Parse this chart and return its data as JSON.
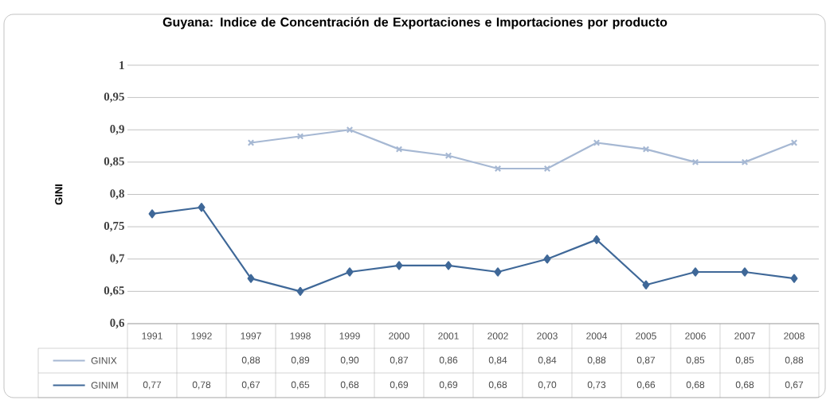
{
  "chart_data": {
    "type": "line",
    "title": "Guyana: Indice de Concentración de Exportaciones e Importaciones por producto",
    "ylabel": "GINI",
    "categories": [
      "1991",
      "1992",
      "1997",
      "1998",
      "1999",
      "2000",
      "2001",
      "2002",
      "2003",
      "2004",
      "2005",
      "2006",
      "2007",
      "2008"
    ],
    "series": [
      {
        "name": "GINIX",
        "color": "#a6b8d3",
        "marker": "cross",
        "values": [
          null,
          null,
          0.88,
          0.89,
          0.9,
          0.87,
          0.86,
          0.84,
          0.84,
          0.88,
          0.87,
          0.85,
          0.85,
          0.88
        ],
        "value_labels": [
          null,
          null,
          "0,88",
          "0,89",
          "0,90",
          "0,87",
          "0,86",
          "0,84",
          "0,84",
          "0,88",
          "0,87",
          "0,85",
          "0,85",
          "0,88"
        ]
      },
      {
        "name": "GINIM",
        "color": "#3f6898",
        "marker": "diamond",
        "values": [
          0.77,
          0.78,
          0.67,
          0.65,
          0.68,
          0.69,
          0.69,
          0.68,
          0.7,
          0.73,
          0.66,
          0.68,
          0.68,
          0.67
        ],
        "value_labels": [
          "0,77",
          "0,78",
          "0,67",
          "0,65",
          "0,68",
          "0,69",
          "0,69",
          "0,68",
          "0,70",
          "0,73",
          "0,66",
          "0,68",
          "0,68",
          "0,67"
        ]
      }
    ],
    "ylim": [
      0.6,
      1
    ],
    "yticks": [
      {
        "value": 0.6,
        "label": "0,6"
      },
      {
        "value": 0.65,
        "label": "0,65"
      },
      {
        "value": 0.7,
        "label": "0,7"
      },
      {
        "value": 0.75,
        "label": "0,75"
      },
      {
        "value": 0.8,
        "label": "0,8"
      },
      {
        "value": 0.85,
        "label": "0,85"
      },
      {
        "value": 0.9,
        "label": "0,9"
      },
      {
        "value": 0.95,
        "label": "0,95"
      },
      1
    ],
    "grid": "y",
    "legend": "bottom",
    "line_style": "solid"
  }
}
